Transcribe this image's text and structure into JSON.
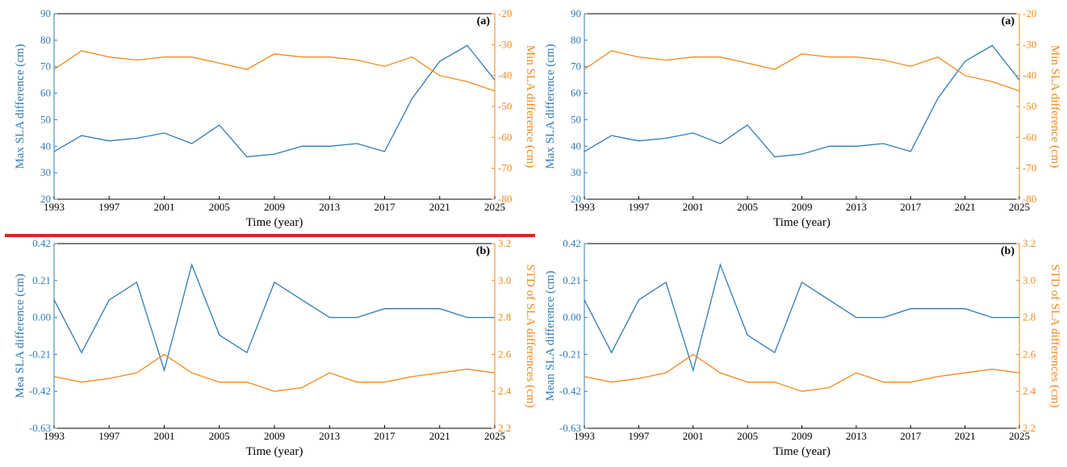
{
  "colors": {
    "blue": "#2f7bb6",
    "orange": "#f08a1c",
    "red_bar": "#d62728",
    "axis": "#000000"
  },
  "chart_data": [
    {
      "type": "line",
      "panel_label": "(a)",
      "xlabel": "Time (year)",
      "ylabel_left": "Max SLA difference (cm)",
      "ylabel_right": "Min SLA difference (cm)",
      "xlim": [
        1993,
        2025
      ],
      "ylim_left": [
        20,
        90
      ],
      "ylim_right": [
        -80,
        -20
      ],
      "x_ticks": [
        "1993",
        "1997",
        "2001",
        "2005",
        "2009",
        "2013",
        "2017",
        "2021",
        "2025"
      ],
      "y_ticks_left": [
        "20",
        "30",
        "40",
        "50",
        "60",
        "70",
        "80",
        "90"
      ],
      "y_ticks_right": [
        "-80",
        "-70",
        "-60",
        "-50",
        "-40",
        "-30",
        "-20"
      ],
      "series": [
        {
          "axis": "left",
          "color": "blue",
          "x": [
            1993,
            1995,
            1997,
            1999,
            2001,
            2003,
            2005,
            2007,
            2009,
            2011,
            2013,
            2015,
            2017,
            2019,
            2021,
            2023,
            2025
          ],
          "values": [
            38,
            44,
            42,
            43,
            45,
            41,
            48,
            36,
            37,
            40,
            40,
            41,
            38,
            58,
            72,
            78,
            65
          ]
        },
        {
          "axis": "right",
          "color": "orange",
          "x": [
            1993,
            1995,
            1997,
            1999,
            2001,
            2003,
            2005,
            2007,
            2009,
            2011,
            2013,
            2015,
            2017,
            2019,
            2021,
            2023,
            2025
          ],
          "values": [
            -38,
            -32,
            -34,
            -35,
            -34,
            -34,
            -36,
            -38,
            -33,
            -34,
            -34,
            -35,
            -37,
            -34,
            -40,
            -42,
            -45
          ]
        }
      ]
    },
    {
      "type": "line",
      "panel_label": "(a)",
      "xlabel": "Time (year)",
      "ylabel_left": "Max SLA difference (cm)",
      "ylabel_right": "Min SLA difference (cm)",
      "xlim": [
        1993,
        2025
      ],
      "ylim_left": [
        20,
        90
      ],
      "ylim_right": [
        -80,
        -20
      ],
      "x_ticks": [
        "1993",
        "1997",
        "2001",
        "2005",
        "2009",
        "2013",
        "2017",
        "2021",
        "2025"
      ],
      "y_ticks_left": [
        "20",
        "30",
        "40",
        "50",
        "60",
        "70",
        "80",
        "90"
      ],
      "y_ticks_right": [
        "-80",
        "-70",
        "-60",
        "-50",
        "-40",
        "-30",
        "-20"
      ],
      "series": [
        {
          "axis": "left",
          "color": "blue",
          "x": [
            1993,
            1995,
            1997,
            1999,
            2001,
            2003,
            2005,
            2007,
            2009,
            2011,
            2013,
            2015,
            2017,
            2019,
            2021,
            2023,
            2025
          ],
          "values": [
            38,
            44,
            42,
            43,
            45,
            41,
            48,
            36,
            37,
            40,
            40,
            41,
            38,
            58,
            72,
            78,
            65
          ]
        },
        {
          "axis": "right",
          "color": "orange",
          "x": [
            1993,
            1995,
            1997,
            1999,
            2001,
            2003,
            2005,
            2007,
            2009,
            2011,
            2013,
            2015,
            2017,
            2019,
            2021,
            2023,
            2025
          ],
          "values": [
            -38,
            -32,
            -34,
            -35,
            -34,
            -34,
            -36,
            -38,
            -33,
            -34,
            -34,
            -35,
            -37,
            -34,
            -40,
            -42,
            -45
          ]
        }
      ]
    },
    {
      "type": "line",
      "panel_label": "(b)",
      "xlabel": "Time (year)",
      "ylabel_left": "Mea SLA difference (cm)",
      "ylabel_right": "STD of SLA differences (cm)",
      "xlim": [
        1993,
        2025
      ],
      "ylim_left": [
        -0.63,
        0.42
      ],
      "ylim_right": [
        2.2,
        3.2
      ],
      "x_ticks": [
        "1993",
        "1997",
        "2001",
        "2005",
        "2009",
        "2013",
        "2017",
        "2021",
        "2025"
      ],
      "y_ticks_left": [
        "-0.63",
        "-0.42",
        "-0.21",
        "0.00",
        "0.21",
        "0.42"
      ],
      "y_ticks_right": [
        "2.2",
        "2.4",
        "2.6",
        "2.8",
        "3.0",
        "3.2"
      ],
      "series": [
        {
          "axis": "left",
          "color": "blue",
          "x": [
            1993,
            1995,
            1997,
            1999,
            2001,
            2003,
            2005,
            2007,
            2009,
            2011,
            2013,
            2015,
            2017,
            2019,
            2021,
            2023,
            2025
          ],
          "values": [
            0.1,
            -0.2,
            0.1,
            0.2,
            -0.3,
            0.3,
            -0.1,
            -0.2,
            0.2,
            0.1,
            0.0,
            0.0,
            0.05,
            0.05,
            0.05,
            0.0,
            0.0
          ]
        },
        {
          "axis": "right",
          "color": "orange",
          "x": [
            1993,
            1995,
            1997,
            1999,
            2001,
            2003,
            2005,
            2007,
            2009,
            2011,
            2013,
            2015,
            2017,
            2019,
            2021,
            2023,
            2025
          ],
          "values": [
            2.48,
            2.45,
            2.47,
            2.5,
            2.6,
            2.5,
            2.45,
            2.45,
            2.4,
            2.42,
            2.5,
            2.45,
            2.45,
            2.48,
            2.5,
            2.52,
            2.5
          ]
        }
      ]
    },
    {
      "type": "line",
      "panel_label": "(b)",
      "xlabel": "Time (year)",
      "ylabel_left": "Mean SLA difference (cm)",
      "ylabel_right": "STD of SLA differences (cm)",
      "xlim": [
        1993,
        2025
      ],
      "ylim_left": [
        -0.63,
        0.42
      ],
      "ylim_right": [
        2.2,
        3.2
      ],
      "x_ticks": [
        "1993",
        "1997",
        "2001",
        "2005",
        "2009",
        "2013",
        "2017",
        "2021",
        "2025"
      ],
      "y_ticks_left": [
        "-0.63",
        "-0.42",
        "-0.21",
        "0.00",
        "0.21",
        "0.42"
      ],
      "y_ticks_right": [
        "2.2",
        "2.4",
        "2.6",
        "2.8",
        "3.0",
        "3.2"
      ],
      "series": [
        {
          "axis": "left",
          "color": "blue",
          "x": [
            1993,
            1995,
            1997,
            1999,
            2001,
            2003,
            2005,
            2007,
            2009,
            2011,
            2013,
            2015,
            2017,
            2019,
            2021,
            2023,
            2025
          ],
          "values": [
            0.1,
            -0.2,
            0.1,
            0.2,
            -0.3,
            0.3,
            -0.1,
            -0.2,
            0.2,
            0.1,
            0.0,
            0.0,
            0.05,
            0.05,
            0.05,
            0.0,
            0.0
          ]
        },
        {
          "axis": "right",
          "color": "orange",
          "x": [
            1993,
            1995,
            1997,
            1999,
            2001,
            2003,
            2005,
            2007,
            2009,
            2011,
            2013,
            2015,
            2017,
            2019,
            2021,
            2023,
            2025
          ],
          "values": [
            2.48,
            2.45,
            2.47,
            2.5,
            2.6,
            2.5,
            2.45,
            2.45,
            2.4,
            2.42,
            2.5,
            2.45,
            2.45,
            2.48,
            2.5,
            2.52,
            2.5
          ]
        }
      ]
    }
  ]
}
